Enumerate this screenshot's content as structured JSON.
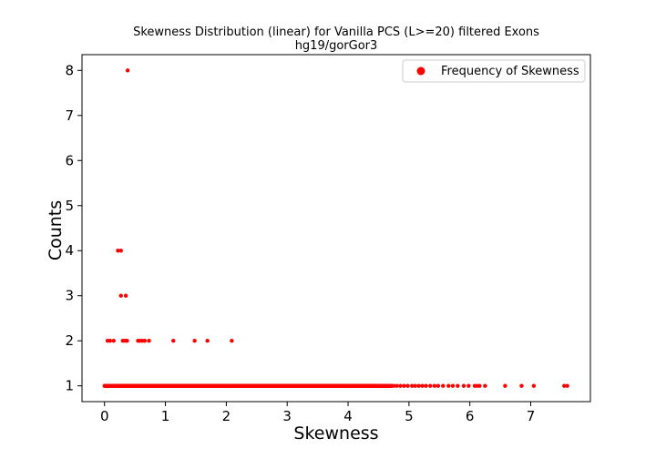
{
  "chart_data": {
    "type": "scatter",
    "title": "Skewness Distribution (linear) for Vanilla PCS (L>=20) filtered Exons",
    "subtitle": "hg19/gorGor3",
    "xlabel": "Skewness",
    "ylabel": "Counts",
    "xlim": [
      -0.37,
      7.98
    ],
    "ylim": [
      0.65,
      8.35
    ],
    "xticks": [
      0,
      1,
      2,
      3,
      4,
      5,
      6,
      7
    ],
    "yticks": [
      1,
      2,
      3,
      4,
      5,
      6,
      7,
      8
    ],
    "grid": false,
    "legend": {
      "label": "Frequency of Skewness",
      "position": "top-right"
    },
    "marker_color": "#ff0000",
    "series": [
      {
        "name": "Frequency of Skewness",
        "points": [
          [
            0.38,
            8
          ],
          [
            0.22,
            4
          ],
          [
            0.27,
            4
          ],
          [
            0.27,
            3
          ],
          [
            0.35,
            3
          ],
          [
            0.05,
            2
          ],
          [
            0.09,
            2
          ],
          [
            0.15,
            2
          ],
          [
            0.3,
            2
          ],
          [
            0.34,
            2
          ],
          [
            0.37,
            2
          ],
          [
            0.55,
            2
          ],
          [
            0.58,
            2
          ],
          [
            0.62,
            2
          ],
          [
            0.66,
            2
          ],
          [
            0.73,
            2
          ],
          [
            1.13,
            2
          ],
          [
            1.48,
            2
          ],
          [
            1.69,
            2
          ],
          [
            2.09,
            2
          ]
        ],
        "dense_range_y1": [
          0.0,
          4.72
        ],
        "sparse_x_y1": [
          4.75,
          4.8,
          4.86,
          4.92,
          4.98,
          5.05,
          5.1,
          5.16,
          5.22,
          5.28,
          5.35,
          5.42,
          5.48,
          5.56,
          5.65,
          5.72,
          5.8,
          5.9,
          5.98,
          6.08,
          6.12,
          6.16,
          6.25,
          6.58,
          6.85,
          7.05,
          7.55,
          7.6
        ]
      }
    ]
  }
}
